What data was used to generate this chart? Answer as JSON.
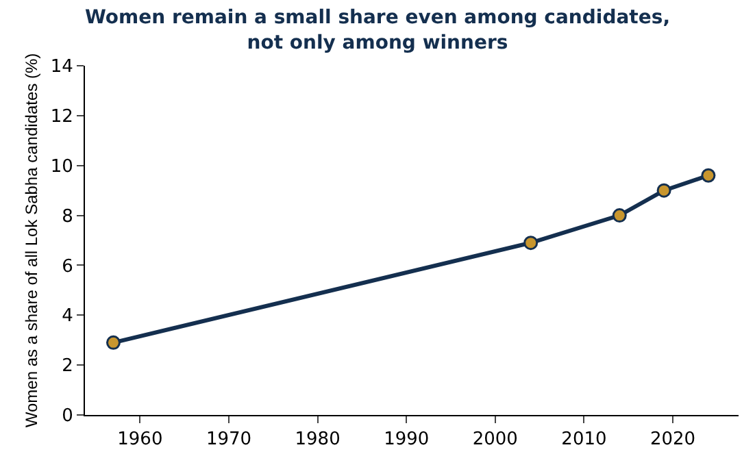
{
  "chart_data": {
    "type": "line",
    "title": "Women remain a small share even among candidates,\nnot only among winners",
    "ylabel": "Women as a share of all Lok Sabha candidates (%)",
    "x": [
      1957,
      2004,
      2014,
      2019,
      2024
    ],
    "series": [
      {
        "color": "#142f4f",
        "colors": [
          "#c8962e",
          "#c8962e",
          "#c8962e",
          "#c8962e",
          "#c8962e"
        ],
        "values": [
          2.9,
          6.9,
          8.0,
          9.0,
          9.6
        ]
      }
    ],
    "xlim": [
      1953.8,
      2027.4
    ],
    "xticks": [
      1960,
      1970,
      1980,
      1990,
      2000,
      2010,
      2020
    ],
    "ylim": [
      0,
      14
    ],
    "yticks": [
      0,
      2,
      4,
      6,
      8,
      10,
      12,
      14
    ],
    "grid": false,
    "marker": "circle",
    "line_style": "solid"
  }
}
